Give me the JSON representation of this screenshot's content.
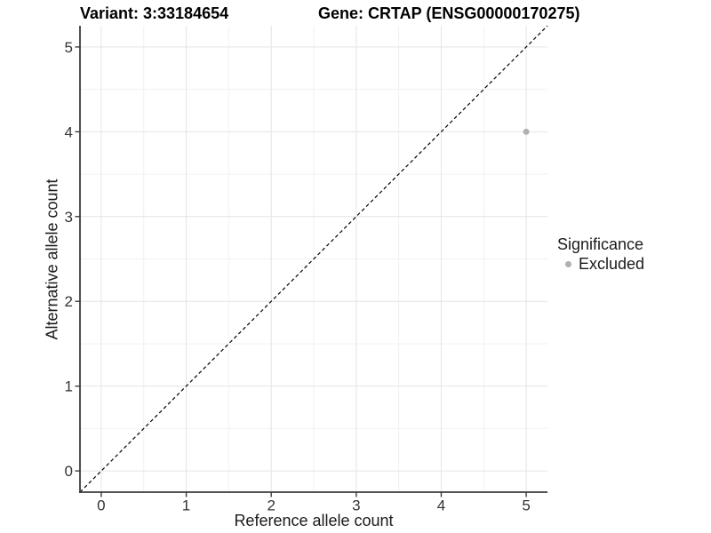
{
  "header": {
    "variant_title": "Variant: 3:33184654",
    "gene_title": "Gene: CRTAP (ENSG00000170275)"
  },
  "chart_data": {
    "type": "scatter",
    "title_left": "Variant: 3:33184654",
    "title_right": "Gene: CRTAP (ENSG00000170275)",
    "xlabel": "Reference allele count",
    "ylabel": "Alternative allele count",
    "xlim": [
      -0.25,
      5.25
    ],
    "ylim": [
      -0.25,
      5.25
    ],
    "x_ticks": [
      0,
      1,
      2,
      3,
      4,
      5
    ],
    "y_ticks": [
      0,
      1,
      2,
      3,
      4,
      5
    ],
    "x_minor_ticks": [
      0.5,
      1.5,
      2.5,
      3.5,
      4.5
    ],
    "y_minor_ticks": [
      0.5,
      1.5,
      2.5,
      3.5,
      4.5
    ],
    "grid": true,
    "points": [
      {
        "x": 5,
        "y": 4,
        "significance": "Excluded"
      }
    ],
    "identity_line": {
      "slope": 1,
      "intercept": 0,
      "style": "dashed"
    },
    "legend": {
      "title": "Significance",
      "position": "right",
      "items": [
        {
          "label": "Excluded",
          "color": "#b0b0b0"
        }
      ]
    },
    "colors": {
      "grid_major": "#e4e4e4",
      "grid_minor": "#f1f1f1",
      "axis": "#3c3c3c",
      "tick_label": "#333333",
      "diagonal": "#000000"
    }
  }
}
